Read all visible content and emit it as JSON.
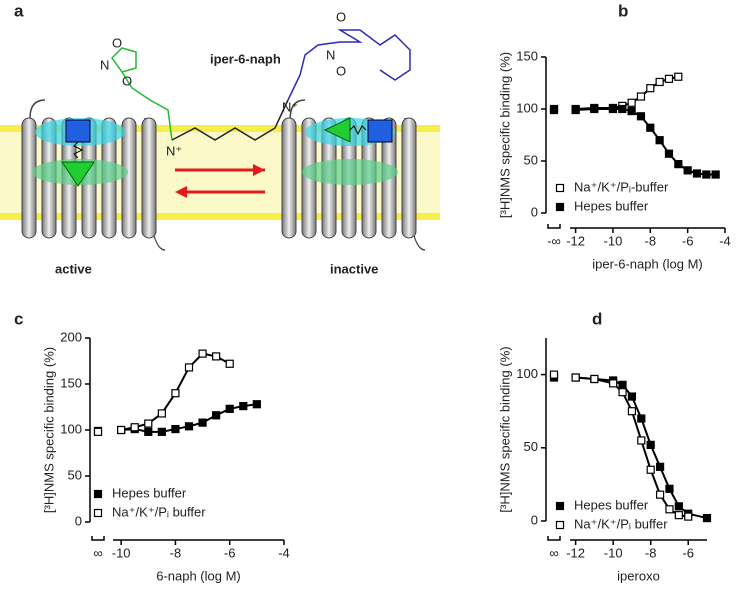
{
  "diagram": {
    "panel_label": "a",
    "ligand": "iper-6-naph",
    "left_state": "active",
    "right_state": "inactive",
    "atoms": [
      "O",
      "N",
      "O",
      "N⁺",
      "N⁺",
      "N",
      "O",
      "O"
    ]
  },
  "chart_data": [
    {
      "type": "line",
      "panel_label": "b",
      "xlabel": "iper-6-naph (log M)",
      "ylabel": "[³H]NMS specific binding (%)",
      "break_label": "-∞",
      "xlim": [
        -12.3,
        -4
      ],
      "ylim": [
        0,
        150
      ],
      "xticks": [
        -12,
        -10,
        -8,
        -6,
        -4
      ],
      "yticks": [
        0,
        50,
        100,
        150
      ],
      "legend": "lower-left",
      "series": [
        {
          "name": "Na⁺/K⁺/Pᵢ-buffer",
          "marker": "open",
          "color": "#000000",
          "baseline": 100,
          "x": [
            -12,
            -11,
            -10,
            -9.5,
            -9,
            -8.5,
            -8,
            -7.5,
            -7,
            -6.5
          ],
          "values": [
            100,
            101,
            101,
            103,
            106,
            112,
            120,
            126,
            129,
            131
          ]
        },
        {
          "name": "Hepes buffer",
          "marker": "filled",
          "color": "#000000",
          "baseline": 99,
          "x": [
            -12,
            -11,
            -10,
            -9.5,
            -9,
            -8.5,
            -8,
            -7.5,
            -7,
            -6.5,
            -6,
            -5.5,
            -5,
            -4.5
          ],
          "values": [
            99,
            100,
            100,
            100,
            98,
            93,
            82,
            70,
            57,
            47,
            41,
            38,
            37,
            37
          ]
        }
      ]
    },
    {
      "type": "line",
      "panel_label": "c",
      "xlabel": "6-naph (log M)",
      "ylabel": "[³H]NMS specific binding (%)",
      "break_label": "∞",
      "xlim": [
        -10.3,
        -4
      ],
      "ylim": [
        0,
        200
      ],
      "xticks": [
        -10,
        -8,
        -6,
        -4
      ],
      "yticks": [
        0,
        50,
        100,
        150,
        200
      ],
      "legend": "lower-left",
      "series": [
        {
          "name": "Hepes buffer",
          "marker": "filled",
          "color": "#000000",
          "baseline": 99,
          "x": [
            -10,
            -9.5,
            -9,
            -8.5,
            -8,
            -7.5,
            -7,
            -6.5,
            -6,
            -5.5,
            -5
          ],
          "values": [
            100,
            101,
            98,
            98,
            101,
            104,
            108,
            116,
            123,
            126,
            128
          ]
        },
        {
          "name": "Na⁺/K⁺/Pᵢ buffer",
          "marker": "open",
          "color": "#000000",
          "baseline": 98,
          "x": [
            -10,
            -9.5,
            -9,
            -8.5,
            -8,
            -7.5,
            -7,
            -6.5,
            -6
          ],
          "values": [
            100,
            103,
            107,
            118,
            140,
            168,
            183,
            180,
            172
          ]
        }
      ]
    },
    {
      "type": "line",
      "panel_label": "d",
      "xlabel": "iperoxo",
      "ylabel": "[³H]NMS specific binding (%)",
      "break_label": "∞",
      "xlim": [
        -12.3,
        -5
      ],
      "ylim": [
        0,
        125
      ],
      "xticks": [
        -12,
        -10,
        -8,
        -6
      ],
      "yticks": [
        0,
        50,
        100
      ],
      "legend": "lower-left",
      "series": [
        {
          "name": "Hepes buffer",
          "marker": "filled",
          "color": "#000000",
          "baseline": 98,
          "x": [
            -12,
            -11,
            -10,
            -9.5,
            -9,
            -8.5,
            -8,
            -7.5,
            -7,
            -6.5,
            -6,
            -5
          ],
          "values": [
            98,
            97,
            96,
            93,
            85,
            70,
            52,
            37,
            22,
            10,
            5,
            2
          ]
        },
        {
          "name": "Na⁺/K⁺/Pᵢ buffer",
          "marker": "open",
          "color": "#000000",
          "baseline": 100,
          "x": [
            -12,
            -11,
            -10,
            -9.5,
            -9,
            -8.5,
            -8,
            -7.5,
            -7,
            -6.5,
            -6
          ],
          "values": [
            98,
            97,
            94,
            88,
            75,
            55,
            35,
            18,
            8,
            4,
            3
          ]
        }
      ]
    }
  ]
}
